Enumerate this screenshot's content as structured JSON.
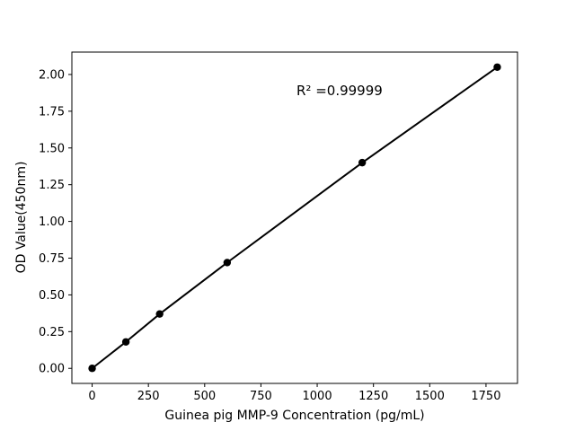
{
  "chart_data": {
    "type": "line",
    "title": "",
    "x": [
      0,
      150,
      300,
      600,
      1200,
      1800
    ],
    "y": [
      0.0,
      0.18,
      0.37,
      0.72,
      1.4,
      2.05
    ],
    "xlabel": "Guinea pig MMP-9 Concentration (pg/mL)",
    "ylabel": "OD Value(450nm)",
    "xticks": [
      0,
      250,
      500,
      750,
      1000,
      1250,
      1500,
      1750
    ],
    "yticks": [
      0.0,
      0.25,
      0.5,
      0.75,
      1.0,
      1.25,
      1.5,
      1.75,
      2.0
    ],
    "xlim": [
      -90,
      1890
    ],
    "ylim": [
      -0.1025,
      2.1525
    ],
    "grid": false,
    "legend": null,
    "annotation": {
      "text": "R² =0.99999",
      "x": 908,
      "y": 1.89
    },
    "line_color": "#000000",
    "marker_color": "#000000",
    "background_color": "#ffffff"
  }
}
